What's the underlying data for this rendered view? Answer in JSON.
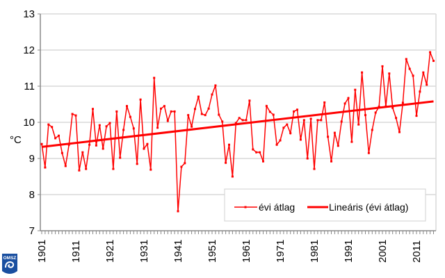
{
  "chart_data": {
    "type": "line",
    "title": "",
    "xlabel": "",
    "ylabel": "°C",
    "ylim": [
      7,
      13
    ],
    "yticks": [
      "7",
      "8",
      "9",
      "10",
      "11",
      "12",
      "13"
    ],
    "xlim": [
      1901,
      2016
    ],
    "xticks": [
      "1901",
      "1911",
      "1921",
      "1931",
      "1941",
      "1951",
      "1961",
      "1971",
      "1981",
      "1991",
      "2001",
      "2011"
    ],
    "grid": "horizontal",
    "legend_position": "bottom-right",
    "series": [
      {
        "name": "évi átlag",
        "color": "#ff0000",
        "marker": "square",
        "x_start": 1901,
        "values": [
          9.4,
          8.75,
          9.94,
          9.87,
          9.56,
          9.63,
          9.15,
          8.79,
          9.38,
          10.23,
          10.19,
          8.67,
          9.17,
          8.71,
          9.38,
          10.37,
          9.36,
          9.92,
          9.27,
          9.89,
          9.98,
          8.71,
          10.3,
          9.02,
          9.79,
          10.45,
          10.15,
          9.83,
          8.85,
          10.63,
          9.27,
          9.4,
          8.69,
          11.23,
          9.85,
          10.38,
          10.45,
          10.04,
          10.3,
          10.3,
          7.54,
          8.77,
          8.87,
          10.2,
          9.88,
          10.37,
          10.71,
          10.23,
          10.2,
          10.38,
          10.77,
          11.02,
          10.21,
          10.02,
          8.88,
          9.38,
          8.5,
          9.98,
          10.12,
          10.06,
          10.06,
          10.6,
          9.25,
          9.17,
          9.17,
          8.92,
          10.45,
          10.29,
          10.21,
          9.38,
          9.5,
          9.85,
          9.94,
          9.7,
          10.3,
          10.35,
          9.52,
          10.06,
          9.0,
          10.1,
          8.71,
          10.06,
          10.06,
          10.55,
          9.6,
          8.92,
          9.71,
          9.35,
          10.02,
          10.52,
          10.67,
          9.46,
          10.9,
          9.94,
          11.38,
          10.2,
          9.15,
          9.79,
          10.27,
          10.43,
          11.55,
          10.44,
          11.35,
          10.4,
          10.12,
          9.73,
          10.54,
          11.75,
          11.48,
          11.29,
          10.18,
          10.85,
          11.38,
          11.04,
          11.94,
          11.7
        ]
      },
      {
        "name": "Lineáris (évi átlag)",
        "color": "#ff0000",
        "trend": {
          "start": [
            1901,
            9.32
          ],
          "end": [
            2016,
            10.58
          ]
        }
      }
    ]
  },
  "logo": {
    "text": "OMSZ",
    "color": "#1a4fa0"
  }
}
